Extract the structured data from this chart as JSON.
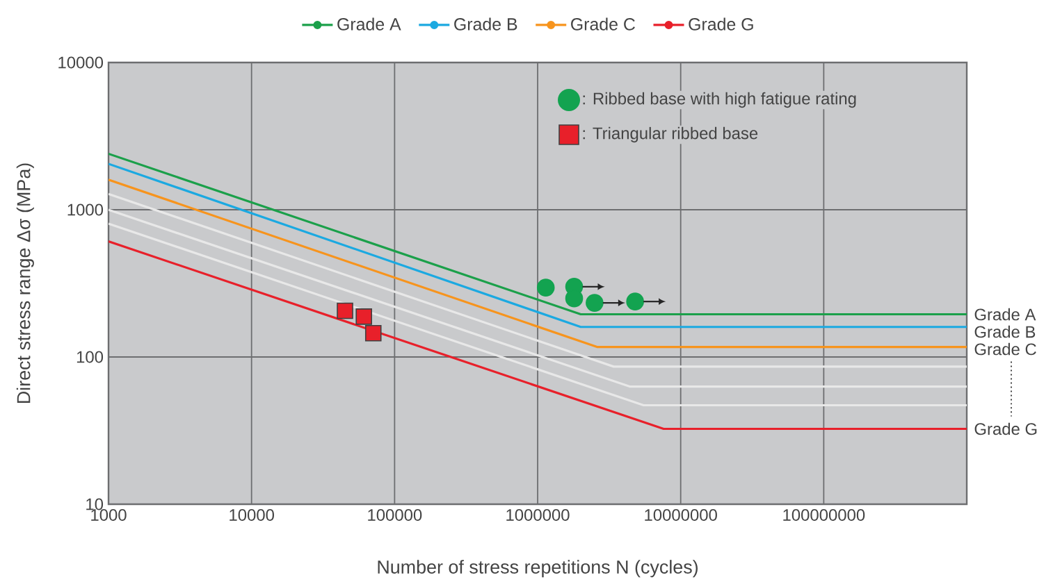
{
  "chart_data": {
    "type": "line",
    "xlabel": "Number of stress repetitions N (cycles)",
    "ylabel": "Direct stress range Δσ (MPa)",
    "log": "xy",
    "grid": true,
    "legend": "top",
    "xlim": [
      1000,
      1000000000
    ],
    "ylim": [
      10,
      10000
    ],
    "xticks": [
      1000,
      10000,
      100000,
      1000000,
      10000000,
      100000000
    ],
    "yticks": [
      10,
      100,
      1000,
      10000
    ],
    "series": [
      {
        "name": "Grade A",
        "color": "#1ba04a",
        "x": [
          1000,
          2000000,
          1000000000
        ],
        "values": [
          2400,
          195,
          195
        ]
      },
      {
        "name": "Grade B",
        "color": "#1ba9e1",
        "x": [
          1000,
          2000000,
          1000000000
        ],
        "values": [
          2050,
          160,
          160
        ]
      },
      {
        "name": "Grade C",
        "color": "#f7941d",
        "x": [
          1000,
          2600000,
          1000000000
        ],
        "values": [
          1600,
          117,
          117
        ]
      },
      {
        "color": "#e8e8e8",
        "x": [
          1000,
          3400000,
          1000000000
        ],
        "values": [
          1280,
          86,
          86
        ]
      },
      {
        "color": "#e8e8e8",
        "x": [
          1000,
          4400000,
          1000000000
        ],
        "values": [
          1000,
          63,
          63
        ]
      },
      {
        "color": "#e8e8e8",
        "x": [
          1000,
          5500000,
          1000000000
        ],
        "values": [
          805,
          47,
          47
        ]
      },
      {
        "name": "Grade G",
        "color": "#e8202a",
        "x": [
          1000,
          7600000,
          1000000000
        ],
        "values": [
          610,
          32.5,
          32.5
        ]
      },
      {
        "name": ": Ribbed base with high fatigue rating",
        "type": "scatter",
        "marker": "circle",
        "color": "#13a350",
        "x": [
          1140000,
          1800000,
          1800000,
          2500000,
          4800000
        ],
        "values": [
          296,
          300,
          250,
          233,
          238
        ]
      },
      {
        "name": ": Triangular ribbed base",
        "type": "scatter",
        "marker": "square",
        "color": "#e8202a",
        "x": [
          45000,
          61000,
          71000
        ],
        "values": [
          206,
          188,
          145
        ]
      }
    ]
  }
}
